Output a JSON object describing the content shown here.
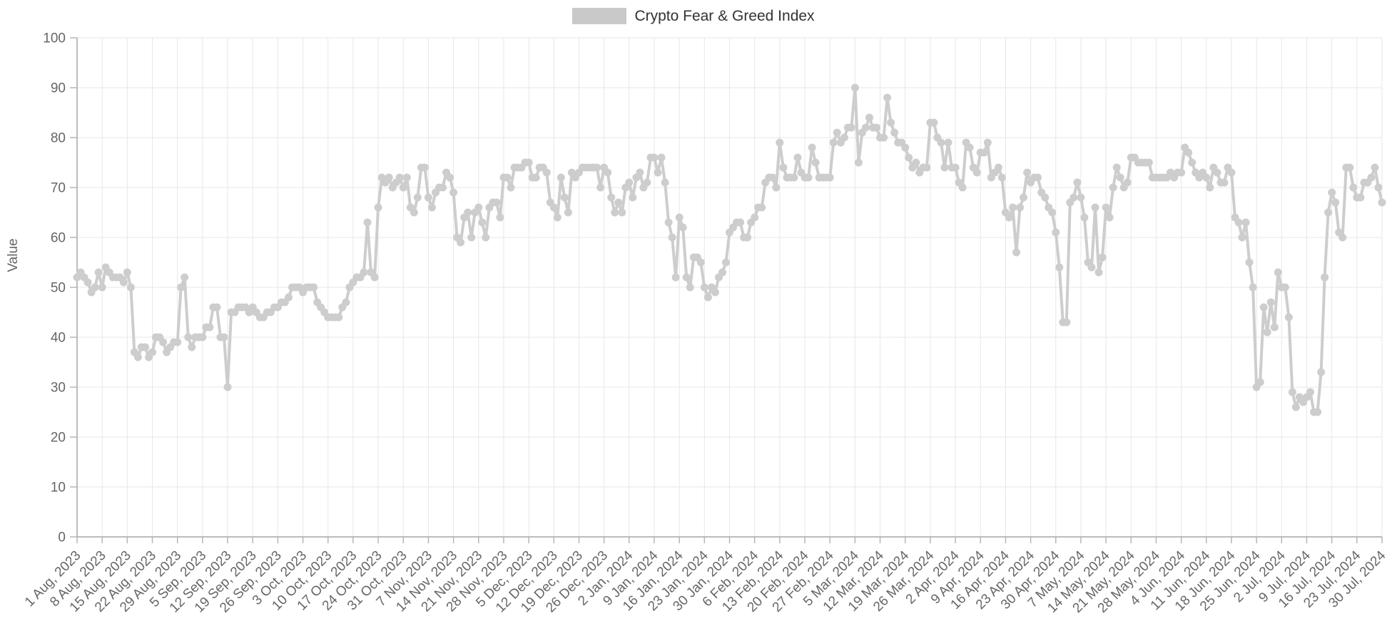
{
  "colors": {
    "background": "#ffffff",
    "series": "#cdcdcd",
    "legend_swatch": "#c9c9c9",
    "legend_text": "#333333",
    "grid": "#e7e7e7",
    "axis_line": "#a6a6a6",
    "tick_mark": "#b5b5b5",
    "tick_text": "#666666",
    "axis_title_text": "#666666"
  },
  "chart_data": {
    "type": "line",
    "title": "",
    "legend": {
      "label": "Crypto Fear & Greed Index",
      "position": "top-center"
    },
    "xlabel": "",
    "ylabel": "Value",
    "ylim": [
      0,
      100
    ],
    "y_ticks": [
      0,
      10,
      20,
      30,
      40,
      50,
      60,
      70,
      80,
      90,
      100
    ],
    "grid": true,
    "x_tick_interval": "weekly",
    "data_interval": "daily",
    "x_range": [
      "1 Aug, 2023",
      "30 Jul, 2024"
    ],
    "x_tick_labels": [
      "1 Aug, 2023",
      "8 Aug, 2023",
      "15 Aug, 2023",
      "22 Aug, 2023",
      "29 Aug, 2023",
      "5 Sep, 2023",
      "12 Sep, 2023",
      "19 Sep, 2023",
      "26 Sep, 2023",
      "3 Oct, 2023",
      "10 Oct, 2023",
      "17 Oct, 2023",
      "24 Oct, 2023",
      "31 Oct, 2023",
      "7 Nov, 2023",
      "14 Nov, 2023",
      "21 Nov, 2023",
      "28 Nov, 2023",
      "5 Dec, 2023",
      "12 Dec, 2023",
      "19 Dec, 2023",
      "26 Dec, 2023",
      "2 Jan, 2024",
      "9 Jan, 2024",
      "16 Jan, 2024",
      "23 Jan, 2024",
      "30 Jan, 2024",
      "6 Feb, 2024",
      "13 Feb, 2024",
      "20 Feb, 2024",
      "27 Feb, 2024",
      "5 Mar, 2024",
      "12 Mar, 2024",
      "19 Mar, 2024",
      "26 Mar, 2024",
      "2 Apr, 2024",
      "9 Apr, 2024",
      "16 Apr, 2024",
      "23 Apr, 2024",
      "30 Apr, 2024",
      "7 May, 2024",
      "14 May, 2024",
      "21 May, 2024",
      "28 May, 2024",
      "4 Jun, 2024",
      "11 Jun, 2024",
      "18 Jun, 2024",
      "25 Jun, 2024",
      "2 Jul, 2024",
      "9 Jul, 2024",
      "16 Jul, 2024",
      "23 Jul, 2024",
      "30 Jul, 2024"
    ],
    "series": [
      {
        "name": "Crypto Fear & Greed Index",
        "color": "#cdcdcd",
        "marker_radius": 5.5,
        "line_width": 4,
        "values": [
          52,
          53,
          52,
          51,
          49,
          50,
          53,
          50,
          54,
          53,
          52,
          52,
          52,
          51,
          53,
          50,
          37,
          36,
          38,
          38,
          36,
          37,
          40,
          40,
          39,
          37,
          38,
          39,
          39,
          50,
          52,
          40,
          38,
          40,
          40,
          40,
          42,
          42,
          46,
          46,
          40,
          40,
          30,
          45,
          45,
          46,
          46,
          46,
          45,
          46,
          45,
          44,
          44,
          45,
          45,
          46,
          46,
          47,
          47,
          48,
          50,
          50,
          50,
          49,
          50,
          50,
          50,
          47,
          46,
          45,
          44,
          44,
          44,
          44,
          46,
          47,
          50,
          51,
          52,
          52,
          53,
          63,
          53,
          52,
          66,
          72,
          71,
          72,
          70,
          71,
          72,
          70,
          72,
          66,
          65,
          68,
          74,
          74,
          68,
          66,
          69,
          70,
          70,
          73,
          72,
          69,
          60,
          59,
          64,
          65,
          60,
          65,
          66,
          63,
          60,
          66,
          67,
          67,
          64,
          72,
          72,
          70,
          74,
          74,
          74,
          75,
          75,
          72,
          72,
          74,
          74,
          73,
          67,
          66,
          64,
          72,
          68,
          65,
          73,
          72,
          73,
          74,
          74,
          74,
          74,
          74,
          70,
          74,
          73,
          68,
          65,
          67,
          65,
          70,
          71,
          68,
          72,
          73,
          70,
          71,
          76,
          76,
          73,
          76,
          71,
          63,
          60,
          52,
          64,
          62,
          52,
          50,
          56,
          56,
          55,
          50,
          48,
          50,
          49,
          52,
          53,
          55,
          61,
          62,
          63,
          63,
          60,
          60,
          63,
          64,
          66,
          66,
          71,
          72,
          72,
          70,
          79,
          74,
          72,
          72,
          72,
          76,
          73,
          72,
          72,
          78,
          75,
          72,
          72,
          72,
          72,
          79,
          81,
          79,
          80,
          82,
          82,
          90,
          75,
          81,
          82,
          84,
          82,
          82,
          80,
          80,
          88,
          83,
          81,
          79,
          79,
          78,
          76,
          74,
          75,
          73,
          74,
          74,
          83,
          83,
          80,
          79,
          74,
          79,
          74,
          74,
          71,
          70,
          79,
          78,
          74,
          73,
          77,
          77,
          79,
          72,
          73,
          74,
          72,
          65,
          64,
          66,
          57,
          66,
          68,
          73,
          71,
          72,
          72,
          69,
          68,
          66,
          65,
          61,
          54,
          43,
          43,
          67,
          68,
          71,
          68,
          64,
          55,
          54,
          66,
          53,
          56,
          66,
          64,
          70,
          74,
          72,
          70,
          71,
          76,
          76,
          75,
          75,
          75,
          75,
          72,
          72,
          72,
          72,
          72,
          73,
          72,
          73,
          73,
          78,
          77,
          75,
          73,
          72,
          73,
          72,
          70,
          74,
          73,
          71,
          71,
          74,
          73,
          64,
          63,
          60,
          63,
          55,
          50,
          30,
          31,
          46,
          41,
          47,
          42,
          53,
          50,
          50,
          44,
          29,
          26,
          28,
          27,
          28,
          29,
          25,
          25,
          33,
          52,
          65,
          69,
          67,
          61,
          60,
          74,
          74,
          70,
          68,
          68,
          71,
          71,
          72,
          74,
          70,
          67
        ]
      }
    ]
  }
}
